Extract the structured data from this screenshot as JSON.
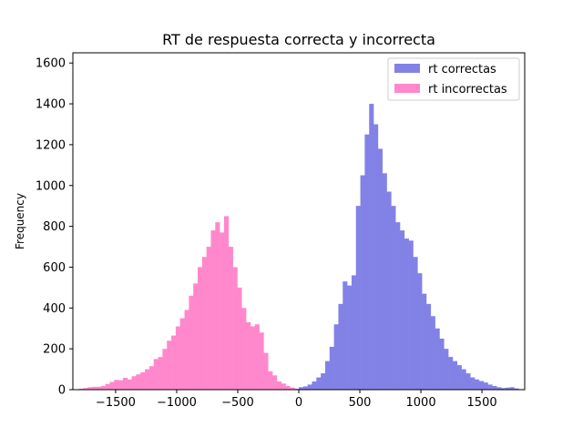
{
  "chart_data": {
    "type": "bar",
    "title": "RT de respuesta correcta y incorrecta",
    "xlabel": "",
    "ylabel": "Frequency",
    "xlim": [
      -1850,
      1850
    ],
    "ylim": [
      0,
      1650
    ],
    "x_ticks": [
      -1500,
      -1000,
      -500,
      0,
      500,
      1000,
      1500
    ],
    "x_tick_labels": [
      "−1500",
      "−1000",
      "−500",
      "0",
      "500",
      "1000",
      "1500"
    ],
    "y_ticks": [
      0,
      200,
      400,
      600,
      800,
      1000,
      1200,
      1400,
      1600
    ],
    "y_tick_labels": [
      "0",
      "200",
      "400",
      "600",
      "800",
      "1000",
      "1200",
      "1400",
      "1600"
    ],
    "legend_position": "top-right",
    "grid": false,
    "series": [
      {
        "name": "rt correctas",
        "color": "#8282e6",
        "bin_edges_start": 0,
        "bin_width": 36,
        "values": [
          12,
          16,
          25,
          40,
          60,
          80,
          140,
          210,
          320,
          420,
          530,
          510,
          560,
          900,
          1050,
          1250,
          1400,
          1300,
          1180,
          1060,
          970,
          900,
          820,
          780,
          740,
          730,
          650,
          570,
          470,
          420,
          360,
          300,
          250,
          200,
          160,
          140,
          120,
          100,
          80,
          60,
          50,
          42,
          35,
          25,
          18,
          12,
          8,
          10,
          12,
          6
        ]
      },
      {
        "name": "rt incorrectas",
        "color": "#ff88cc",
        "bin_edges_start": -1800,
        "bin_width": 36,
        "values": [
          5,
          8,
          12,
          14,
          14,
          18,
          28,
          38,
          48,
          46,
          58,
          50,
          66,
          75,
          85,
          100,
          115,
          150,
          160,
          200,
          240,
          265,
          310,
          350,
          390,
          460,
          520,
          600,
          650,
          700,
          780,
          820,
          770,
          850,
          700,
          600,
          500,
          400,
          330,
          310,
          320,
          280,
          180,
          90,
          70,
          40,
          30,
          18,
          10,
          5
        ]
      }
    ]
  }
}
